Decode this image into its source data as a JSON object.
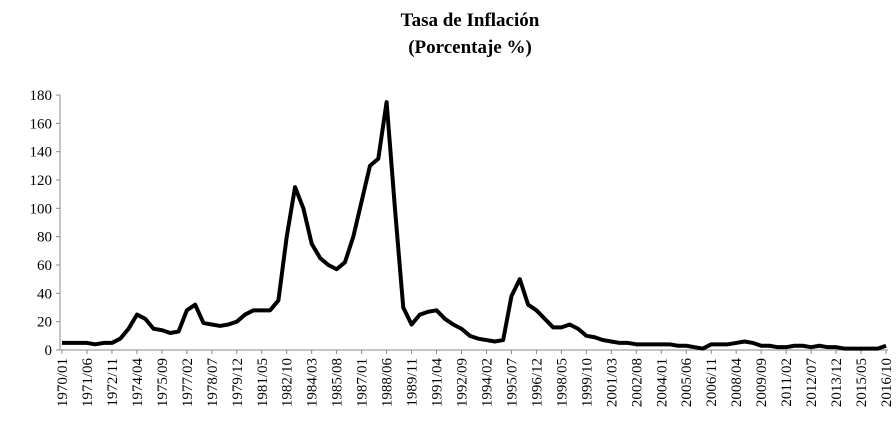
{
  "chart_data": {
    "type": "line",
    "title": [
      "Tasa de Inflación",
      "(Porcentaje %)"
    ],
    "categories": [
      "1970/01",
      null,
      null,
      "1971/06",
      null,
      null,
      "1972/11",
      null,
      null,
      "1974/04",
      null,
      null,
      "1975/09",
      null,
      null,
      "1977/02",
      null,
      null,
      "1978/07",
      null,
      null,
      "1979/12",
      null,
      null,
      "1981/05",
      null,
      null,
      "1982/10",
      null,
      null,
      "1984/03",
      null,
      null,
      "1985/08",
      null,
      null,
      "1987/01",
      null,
      null,
      "1988/06",
      null,
      null,
      "1989/11",
      null,
      null,
      "1991/04",
      null,
      null,
      "1992/09",
      null,
      null,
      "1994/02",
      null,
      null,
      "1995/07",
      null,
      null,
      "1996/12",
      null,
      null,
      "1998/05",
      null,
      null,
      "1999/10",
      null,
      null,
      "2001/03",
      null,
      null,
      "2002/08",
      null,
      null,
      "2004/01",
      null,
      null,
      "2005/06",
      null,
      null,
      "2006/11",
      null,
      null,
      "2008/04",
      null,
      null,
      "2009/09",
      null,
      null,
      "2011/02",
      null,
      null,
      "2012/07",
      null,
      null,
      "2013/12",
      null,
      null,
      "2015/05",
      null,
      null,
      "2016/10"
    ],
    "series": [
      {
        "color": "#000000",
        "values": [
          5,
          5,
          5,
          5,
          4,
          5,
          5,
          8,
          15,
          25,
          22,
          15,
          14,
          12,
          13,
          28,
          32,
          19,
          18,
          17,
          18,
          20,
          25,
          28,
          28,
          28,
          35,
          80,
          115,
          100,
          75,
          65,
          60,
          57,
          62,
          80,
          105,
          130,
          135,
          175,
          100,
          30,
          18,
          25,
          27,
          28,
          22,
          18,
          15,
          10,
          8,
          7,
          6,
          7,
          38,
          50,
          32,
          28,
          22,
          16,
          16,
          18,
          15,
          10,
          9,
          7,
          6,
          5,
          5,
          4,
          4,
          4,
          4,
          4,
          3,
          3,
          2,
          1,
          4,
          4,
          4,
          5,
          6,
          5,
          3,
          3,
          2,
          2,
          3,
          3,
          2,
          3,
          2,
          2,
          1,
          1,
          1,
          1,
          1,
          3
        ]
      }
    ],
    "ylim": [
      0,
      180
    ],
    "yticks": [
      0,
      20,
      40,
      60,
      80,
      100,
      120,
      140,
      160,
      180
    ]
  }
}
